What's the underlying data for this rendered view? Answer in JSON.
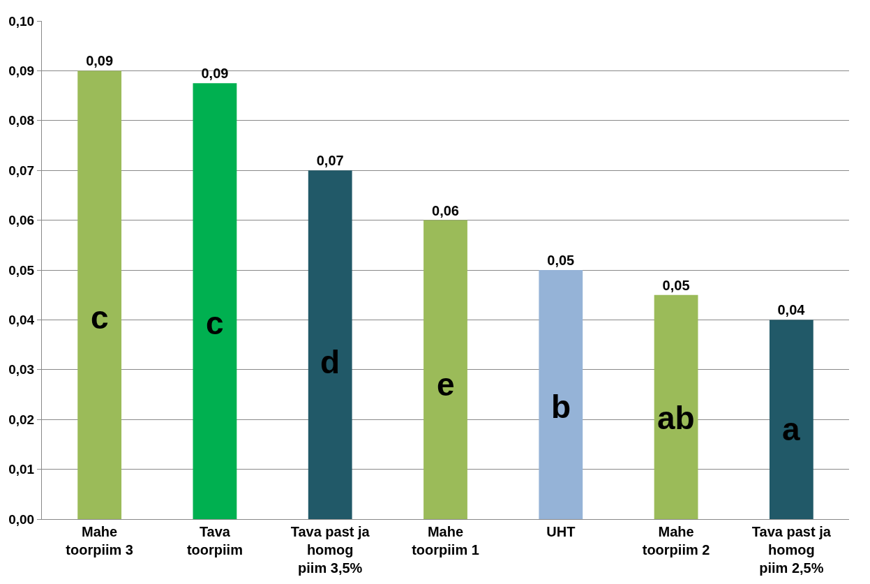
{
  "chart_data": {
    "type": "bar",
    "categories": [
      "Mahe\ntoorpiim 3",
      "Tava\ntoorpiim",
      "Tava past ja\nhomog\npiim 3,5%",
      "Mahe\ntoorpiim 1",
      "UHT",
      "Mahe\ntoorpiim 2",
      "Tava past ja\nhomog\npiim 2,5%"
    ],
    "values": [
      0.09,
      0.0875,
      0.07,
      0.06,
      0.05,
      0.045,
      0.04
    ],
    "colors": [
      "#9bbb59",
      "#00b050",
      "#215968",
      "#9bbb59",
      "#95b3d7",
      "#9bbb59",
      "#215968"
    ],
    "value_labels": [
      "0,09",
      "0,09",
      "0,07",
      "0,06",
      "0,05",
      "0,05",
      "0,04"
    ],
    "ylim": [
      0,
      0.1
    ],
    "yticks": [
      {
        "value": 0,
        "label": "0,00"
      },
      {
        "value": 0.01,
        "label": "0,01"
      },
      {
        "value": 0.02,
        "label": "0,02"
      },
      {
        "value": 0.03,
        "label": "0,03"
      },
      {
        "value": 0.04,
        "label": "0,04"
      },
      {
        "value": 0.05,
        "label": "0,05"
      },
      {
        "value": 0.06,
        "label": "0,06"
      },
      {
        "value": 0.07,
        "label": "0,07"
      },
      {
        "value": 0.08,
        "label": "0,08"
      },
      {
        "value": 0.09,
        "label": "0,09"
      },
      {
        "value": 0.1,
        "label": "0,10"
      }
    ],
    "grid": "y",
    "annotations": [
      "c",
      "c",
      "d",
      "e",
      "b",
      "ab",
      "a"
    ]
  }
}
